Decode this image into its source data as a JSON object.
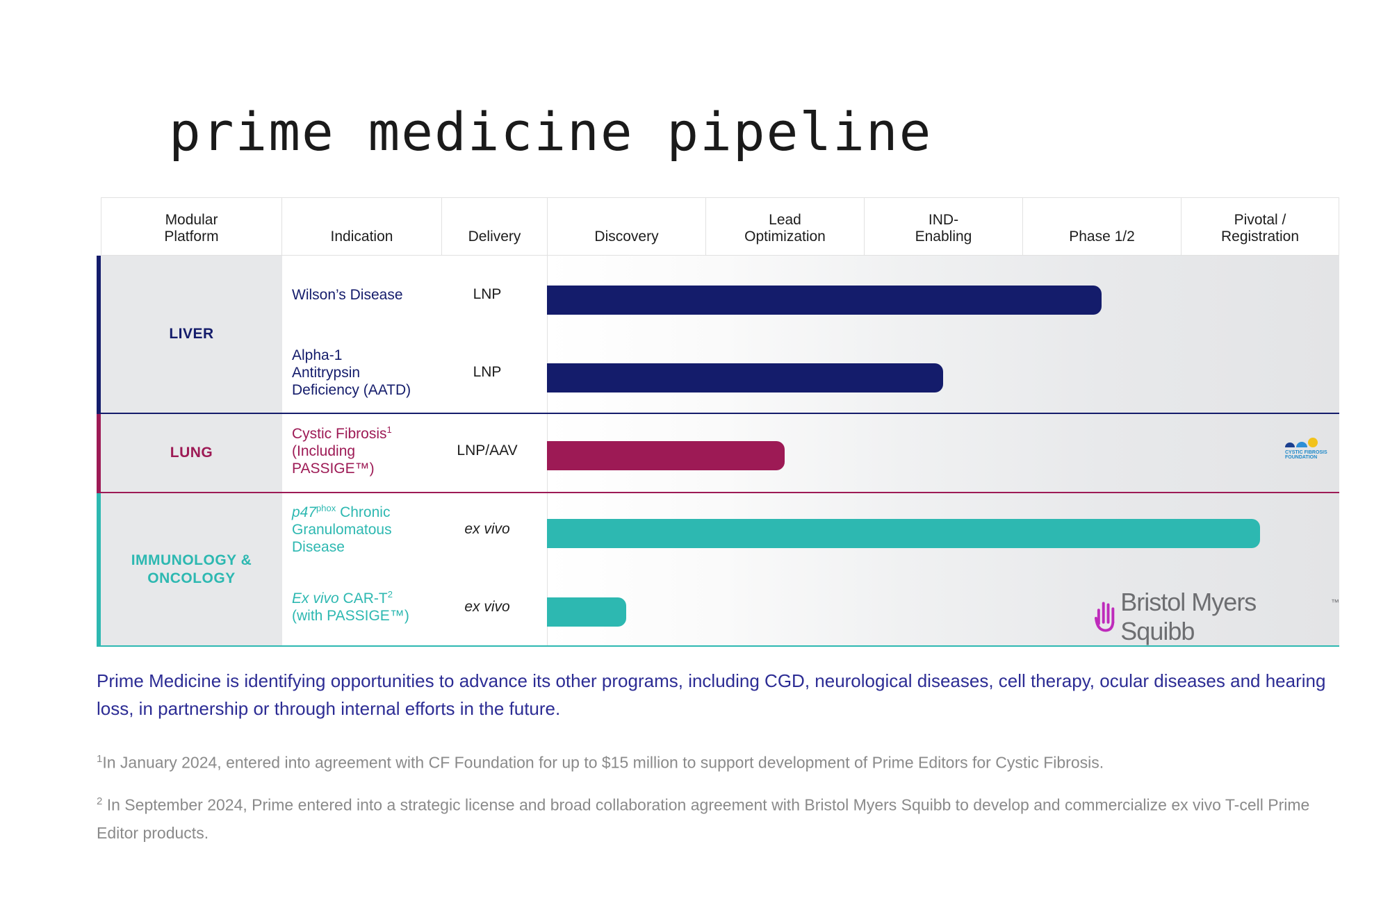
{
  "title": "prime medicine pipeline",
  "colors": {
    "liver": "#141c6b",
    "lung": "#9d1a55",
    "immuno": "#2db8b1",
    "cf_logo": "#1e88c8",
    "bms_hand": "#be2bbb"
  },
  "columns": [
    {
      "l1": "Modular",
      "l2": "Platform"
    },
    {
      "l1": "",
      "l2": "Indication"
    },
    {
      "l1": "",
      "l2": "Delivery"
    },
    {
      "l1": "",
      "l2": "Discovery"
    },
    {
      "l1": "Lead",
      "l2": "Optimization"
    },
    {
      "l1": "IND-",
      "l2": "Enabling"
    },
    {
      "l1": "",
      "l2": "Phase 1/2"
    },
    {
      "l1": "Pivotal /",
      "l2": "Registration"
    }
  ],
  "platforms": {
    "liver": "LIVER",
    "lung": "LUNG",
    "immuno_l1": "IMMUNOLOGY &",
    "immuno_l2": "ONCOLOGY"
  },
  "rows": {
    "wilson": {
      "name": "Wilson’s Disease",
      "delivery": "LNP"
    },
    "aatd": {
      "l1": "Alpha-1",
      "l2": "Antitrypsin",
      "l3": "Deficiency (AATD)",
      "delivery": "LNP"
    },
    "cf": {
      "l1": "Cystic Fibrosis",
      "sup": "1",
      "l2": "(Including",
      "l3": "PASSIGE™)",
      "delivery": "LNP/AAV"
    },
    "cgd": {
      "ital": "p47",
      "sup": "phox",
      "l1": " Chronic",
      "l2": "Granulomatous",
      "l3": "Disease",
      "delivery": "ex vivo"
    },
    "cart": {
      "ital": "Ex vivo",
      "l1": " CAR-T",
      "sup": "2",
      "l2": "(with PASSIGE™)",
      "delivery": "ex vivo"
    }
  },
  "chart_data": {
    "type": "bar",
    "orientation": "horizontal",
    "stages": [
      "Discovery",
      "Lead Optimization",
      "IND-Enabling",
      "Phase 1/2",
      "Pivotal / Registration"
    ],
    "categories": [
      "Wilson’s Disease",
      "Alpha-1 Antitrypsin Deficiency (AATD)",
      "Cystic Fibrosis (Including PASSIGE™)",
      "p47phox Chronic Granulomatous Disease",
      "Ex vivo CAR-T (with PASSIGE™)"
    ],
    "platform": [
      "LIVER",
      "LIVER",
      "LUNG",
      "IMMUNOLOGY & ONCOLOGY",
      "IMMUNOLOGY & ONCOLOGY"
    ],
    "values": [
      3.5,
      2.5,
      1.5,
      4.5,
      0.5
    ],
    "xlim": [
      0,
      5
    ]
  },
  "partners": {
    "cf_l1": "CYSTIC FIBROSIS",
    "cf_l2": "FOUNDATION",
    "bms": "Bristol Myers Squibb",
    "bms_tm": "™"
  },
  "note": "Prime Medicine is identifying opportunities to advance its other programs, including CGD, neurological diseases, cell therapy, ocular diseases and hearing loss, in partnership or through internal efforts in the future.",
  "footnotes": [
    {
      "num": "1",
      "text": "In January 2024, entered into agreement with CF Foundation for up to $15 million to support development of Prime Editors for Cystic Fibrosis."
    },
    {
      "num": "2",
      "text": " In September 2024, Prime entered into a strategic license and broad collaboration agreement with Bristol Myers Squibb to develop and commercialize ex vivo T-cell Prime Editor products."
    }
  ]
}
